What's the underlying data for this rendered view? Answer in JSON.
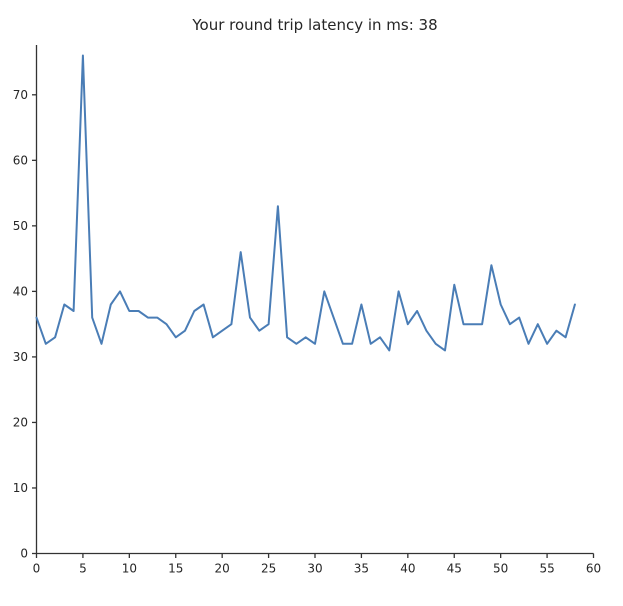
{
  "page": {
    "background": "#ffffff"
  },
  "chart_data": {
    "type": "line",
    "title": "Your round trip latency in ms: 38",
    "current_value": 38,
    "xlabel": "",
    "ylabel": "",
    "xlim": [
      0,
      60
    ],
    "ylim": [
      0,
      77.6
    ],
    "xticks": [
      0,
      5,
      10,
      15,
      20,
      25,
      30,
      35,
      40,
      45,
      50,
      55,
      60
    ],
    "yticks": [
      0,
      10,
      20,
      30,
      40,
      50,
      60,
      70
    ],
    "grid": false,
    "legend": "none",
    "spines": [
      "left",
      "bottom"
    ],
    "x_values": [
      0,
      1,
      2,
      3,
      4,
      5,
      6,
      7,
      8,
      9,
      10,
      11,
      12,
      13,
      14,
      15,
      16,
      17,
      18,
      19,
      20,
      21,
      22,
      23,
      24,
      25,
      26,
      27,
      28,
      29,
      30,
      31,
      32,
      33,
      34,
      35,
      36,
      37,
      38,
      39,
      40,
      41,
      42,
      43,
      44,
      45,
      46,
      47,
      48,
      49,
      50,
      51,
      52,
      53,
      54,
      55,
      56,
      57,
      58
    ],
    "values": [
      36,
      32,
      33,
      38,
      37,
      76,
      36,
      32,
      38,
      40,
      37,
      37,
      36,
      36,
      35,
      33,
      34,
      37,
      38,
      33,
      34,
      35,
      46,
      36,
      34,
      35,
      53,
      33,
      32,
      33,
      32,
      40,
      36,
      32,
      32,
      38,
      32,
      33,
      31,
      40,
      35,
      37,
      34,
      32,
      31,
      41,
      35,
      35,
      35,
      44,
      38,
      35,
      36,
      32,
      35,
      32,
      34,
      33,
      38
    ],
    "series_name": "round-trip-latency-ms",
    "line_color": "#4a7db6",
    "axis_color": "#333333",
    "text_color": "#262626"
  }
}
